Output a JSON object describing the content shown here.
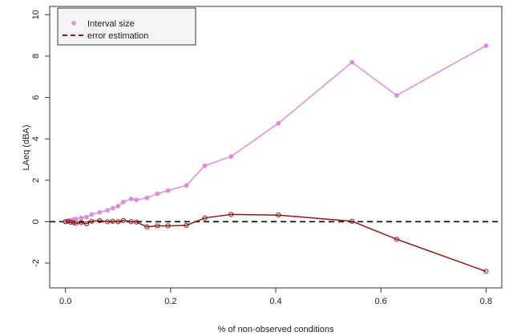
{
  "chart_data": {
    "type": "line",
    "title": "",
    "xlabel": "% of non-observed conditions",
    "ylabel": "LAeq (dBA)",
    "xlim": [
      -0.03,
      0.83
    ],
    "ylim": [
      -3.2,
      10.4
    ],
    "x_ticks": [
      0.0,
      0.2,
      0.4,
      0.6,
      0.8
    ],
    "x_tick_labels": [
      "0.0",
      "0.2",
      "0.4",
      "0.6",
      "0.8"
    ],
    "y_ticks": [
      -2,
      0,
      2,
      4,
      6,
      8,
      10
    ],
    "y_tick_labels": [
      "-2",
      "0",
      "2",
      "4",
      "6",
      "8",
      "10"
    ],
    "grid": false,
    "legend_position": "top-left",
    "legend": [
      {
        "label": "Interval size",
        "style": "point",
        "color": "#d98fd9"
      },
      {
        "label": "error estimation",
        "style": "dashed",
        "color": "#8b1a1a"
      }
    ],
    "series": [
      {
        "name": "Interval size",
        "color": "#d98fd9",
        "line_color": "#d98fd9",
        "x": [
          0.0,
          0.005,
          0.01,
          0.015,
          0.02,
          0.03,
          0.04,
          0.05,
          0.065,
          0.08,
          0.09,
          0.1,
          0.11,
          0.125,
          0.135,
          0.155,
          0.175,
          0.195,
          0.23,
          0.265,
          0.315,
          0.405,
          0.545,
          0.63,
          0.8
        ],
        "y": [
          0.0,
          0.03,
          0.07,
          0.1,
          0.13,
          0.18,
          0.22,
          0.35,
          0.45,
          0.55,
          0.65,
          0.75,
          0.95,
          1.1,
          1.05,
          1.15,
          1.35,
          1.5,
          1.75,
          2.7,
          3.15,
          4.75,
          7.7,
          6.1,
          8.5
        ]
      },
      {
        "name": "",
        "color": "#8b1a1a",
        "line_color": "#8b1a1a",
        "x": [
          0.0,
          0.005,
          0.01,
          0.015,
          0.02,
          0.03,
          0.04,
          0.05,
          0.065,
          0.08,
          0.09,
          0.1,
          0.11,
          0.125,
          0.135,
          0.155,
          0.175,
          0.195,
          0.23,
          0.265,
          0.315,
          0.405,
          0.545,
          0.63,
          0.8
        ],
        "y": [
          0.0,
          0.02,
          -0.03,
          -0.05,
          -0.08,
          -0.05,
          -0.1,
          0.02,
          0.05,
          0.0,
          0.02,
          0.0,
          0.06,
          0.0,
          -0.02,
          -0.25,
          -0.2,
          -0.2,
          -0.18,
          0.18,
          0.35,
          0.32,
          0.02,
          -0.85,
          -2.4
        ]
      }
    ],
    "reference_line": {
      "y": 0,
      "style": "dashed",
      "color": "#000000"
    }
  }
}
